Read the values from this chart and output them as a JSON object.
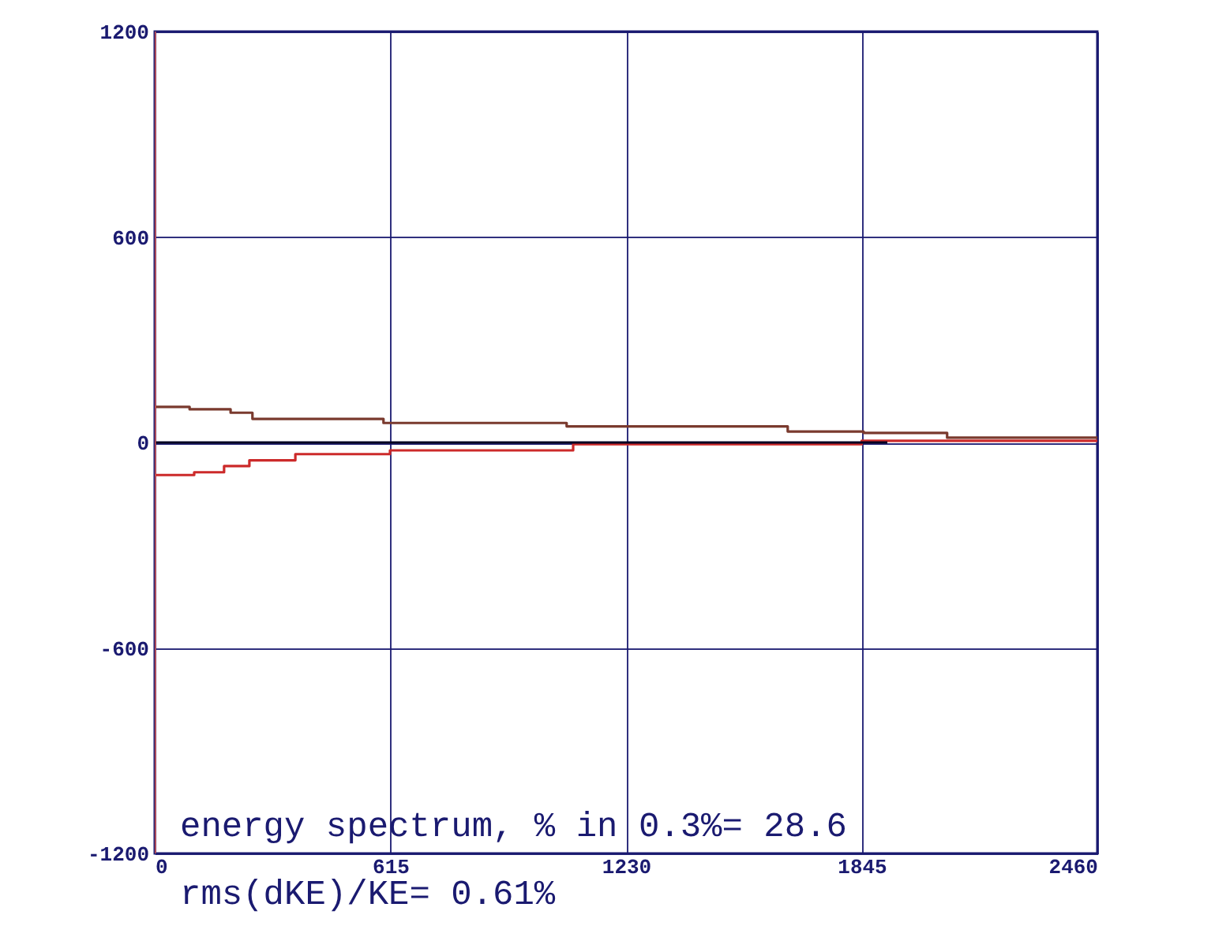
{
  "chart_data": {
    "type": "step",
    "xlim": [
      0,
      2460
    ],
    "xticks": [
      0,
      615,
      1230,
      1845,
      2460
    ],
    "ylim": [
      -1200,
      1200
    ],
    "yticks": [
      -1200,
      -600,
      0,
      600,
      1200
    ],
    "grid": true,
    "line_style": "solid",
    "series": [
      {
        "color": "#7a3a2e",
        "x": [
          0,
          91,
          198,
          255,
          597,
          1075,
          1652,
          1850,
          2068,
          2460
        ],
        "values": [
          104,
          97,
          87,
          69,
          57,
          47,
          32,
          28,
          14,
          14
        ]
      },
      {
        "color": "#cc2a2a",
        "x": [
          0,
          103,
          181,
          247,
          367,
          614,
          1092,
          1845,
          2460
        ],
        "values": [
          -95,
          -87,
          -69,
          -52,
          -34,
          -23,
          -5,
          5,
          5
        ]
      },
      {
        "color": "#000022",
        "x": [
          0,
          1912
        ],
        "values": [
          0,
          0
        ]
      },
      {
        "color": "#cc5555",
        "x": [
          0,
          0
        ],
        "values": [
          -1200,
          1200
        ]
      }
    ],
    "annotations": [
      "energy spectrum, % in  0.3%= 28.6",
      "rms(dKE)/KE= 0.61%"
    ]
  }
}
